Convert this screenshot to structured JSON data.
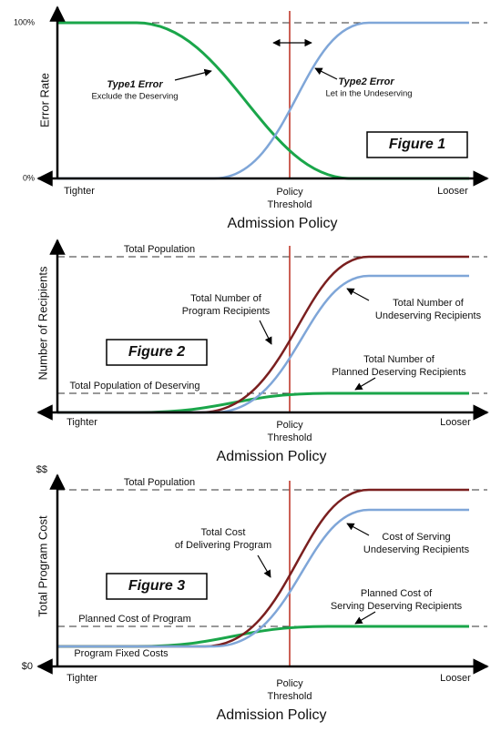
{
  "figures": [
    {
      "label": "Figure 1",
      "y_axis_label": "Error Rate",
      "y_ticks": [
        "100%",
        "0%"
      ],
      "x_left": "Tighter",
      "x_right": "Looser",
      "threshold": [
        "Policy",
        "Threshold"
      ],
      "x_axis_label": "Admission Policy",
      "annotations": [
        {
          "title": "Type1 Error",
          "lines": [
            "Exclude the Deserving"
          ]
        },
        {
          "title": "Type2 Error",
          "lines": [
            "Let in the Undeserving"
          ]
        }
      ]
    },
    {
      "label": "Figure 2",
      "y_axis_label": "Number of Recipients",
      "x_left": "Tighter",
      "x_right": "Looser",
      "threshold": [
        "Policy",
        "Threshold"
      ],
      "x_axis_label": "Admission Policy",
      "reference_lines": [
        "Total Population",
        "Total Population of Deserving"
      ],
      "annotations": [
        {
          "lines": [
            "Total Number of",
            "Program Recipients"
          ]
        },
        {
          "lines": [
            "Total Number of",
            "Undeserving Recipients"
          ]
        },
        {
          "lines": [
            "Total Number of",
            "Planned Deserving Recipients"
          ]
        }
      ]
    },
    {
      "label": "Figure 3",
      "y_axis_label": "Total Program Cost",
      "y_ticks": [
        "$$",
        "$0"
      ],
      "x_left": "Tighter",
      "x_right": "Looser",
      "threshold": [
        "Policy",
        "Threshold"
      ],
      "x_axis_label": "Admission Policy",
      "reference_lines": [
        "Total Population",
        "Planned Cost of Program",
        "Program Fixed Costs"
      ],
      "annotations": [
        {
          "lines": [
            "Total Cost",
            "of Delivering Program"
          ]
        },
        {
          "lines": [
            "Cost of Serving",
            "Undeserving Recipients"
          ]
        },
        {
          "lines": [
            "Planned Cost of",
            "Serving Deserving Recipients"
          ]
        }
      ]
    }
  ]
}
